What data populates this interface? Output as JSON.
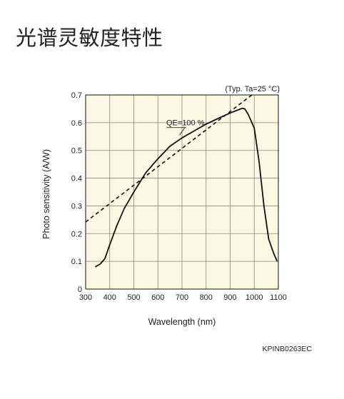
{
  "page": {
    "heading": "光谱灵敏度特性"
  },
  "chart_data": {
    "type": "line",
    "title": "",
    "xlabel": "Wavelength (nm)",
    "ylabel": "Photo sensitivity (A/W)",
    "xlim": [
      300,
      1100
    ],
    "ylim": [
      0,
      0.7
    ],
    "x_ticks": [
      "300",
      "400",
      "500",
      "600",
      "700",
      "800",
      "900",
      "1000",
      "1100"
    ],
    "y_ticks": [
      "0",
      "0.1",
      "0.2",
      "0.3",
      "0.4",
      "0.5",
      "0.6",
      "0.7"
    ],
    "grid": true,
    "condition_note": "(Typ. Ta=25 °C)",
    "part_code": "KPINB0263EC",
    "series": [
      {
        "name": "",
        "style": "solid",
        "x": [
          340,
          360,
          380,
          400,
          430,
          460,
          500,
          550,
          600,
          650,
          700,
          750,
          800,
          850,
          900,
          930,
          950,
          960,
          975,
          1000,
          1020,
          1040,
          1060,
          1080,
          1095
        ],
        "y": [
          0.08,
          0.09,
          0.11,
          0.16,
          0.23,
          0.29,
          0.35,
          0.42,
          0.47,
          0.515,
          0.545,
          0.57,
          0.595,
          0.615,
          0.635,
          0.645,
          0.652,
          0.65,
          0.63,
          0.58,
          0.46,
          0.3,
          0.18,
          0.13,
          0.1
        ]
      },
      {
        "name": "QE=100 %",
        "style": "dashed",
        "x": [
          300,
          990
        ],
        "y": [
          0.242,
          0.7
        ]
      }
    ],
    "annotations": [
      {
        "text": "QE=100 %",
        "x": 700,
        "y": 0.59,
        "points_to": {
          "x": 690,
          "y": 0.555
        }
      }
    ]
  }
}
